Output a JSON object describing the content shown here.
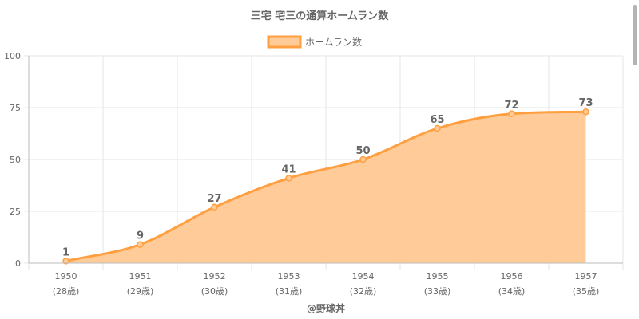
{
  "chart_data": {
    "type": "area",
    "title": "三宅 宅三の通算ホームラン数",
    "categories": [
      "1950",
      "1951",
      "1952",
      "1953",
      "1954",
      "1955",
      "1956",
      "1957"
    ],
    "category_sublabels": [
      "(28歳)",
      "(29歳)",
      "(30歳)",
      "(31歳)",
      "(32歳)",
      "(33歳)",
      "(34歳)",
      "(35歳)"
    ],
    "series": [
      {
        "name": "ホームラン数",
        "values": [
          1,
          9,
          27,
          41,
          50,
          65,
          72,
          73
        ]
      }
    ],
    "ylim": [
      0,
      100
    ],
    "yticks": [
      0,
      25,
      50,
      75,
      100
    ],
    "grid": true,
    "legend": "top-center",
    "data_labels": true,
    "colors": {
      "line": "#ff9f40",
      "fill": "#ffcc99",
      "grid": "#e6e6e6",
      "axis": "#bbbbbb",
      "text": "#666666"
    }
  },
  "credit": "@野球丼"
}
